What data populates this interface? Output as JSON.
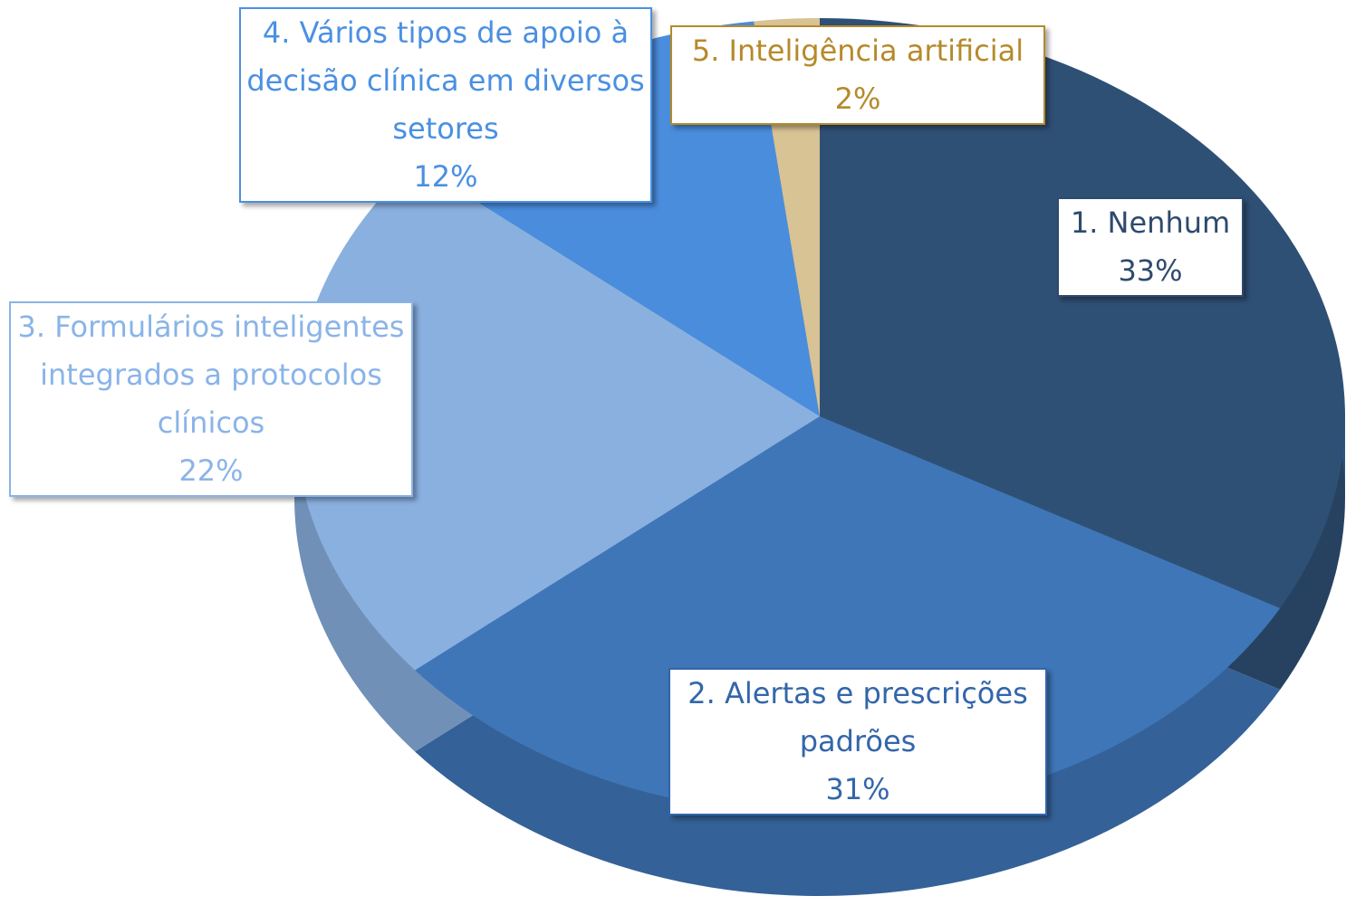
{
  "chart_data": {
    "type": "pie",
    "categories": [
      "1. Nenhum",
      "2. Alertas e prescrições padrões",
      "3. Formulários inteligentes integrados a protocolos clínicos",
      "4. Vários tipos de apoio à decisão clínica em diversos setores",
      "5. Inteligência artificial"
    ],
    "values": [
      33,
      31,
      22,
      12,
      2
    ],
    "value_labels": [
      "33%",
      "31%",
      "22%",
      "12%",
      "2%"
    ],
    "colors": [
      "#2f5075",
      "#3f76b8",
      "#8ab0e0",
      "#4a8ddd",
      "#d8c394"
    ],
    "label_colors": [
      "#2e4a6e",
      "#3366aa",
      "#8ab4e8",
      "#4a90e2",
      "#b58a2a"
    ]
  }
}
